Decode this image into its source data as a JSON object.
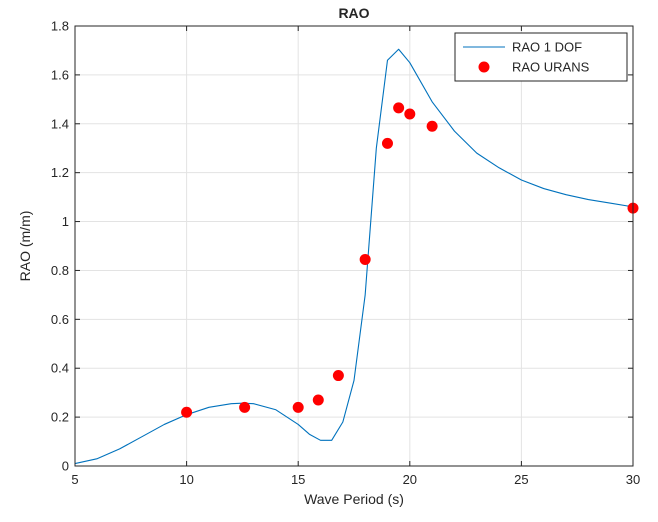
{
  "chart_data": {
    "type": "line",
    "title": "RAO",
    "xlabel": "Wave Period (s)",
    "ylabel": "RAO (m/m)",
    "xlim": [
      5,
      30
    ],
    "ylim": [
      0,
      1.8
    ],
    "xticks": [
      "5",
      "10",
      "15",
      "20",
      "25",
      "30"
    ],
    "yticks": [
      "0",
      "0.2",
      "0.4",
      "0.6",
      "0.8",
      "1",
      "1.2",
      "1.4",
      "1.6",
      "1.8"
    ],
    "grid": true,
    "legend_position": "top-right",
    "series": [
      {
        "name": "RAO 1 DOF",
        "kind": "line",
        "color": "#0072BD",
        "points": [
          [
            5,
            0.01
          ],
          [
            6,
            0.03
          ],
          [
            7,
            0.07
          ],
          [
            8,
            0.12
          ],
          [
            9,
            0.17
          ],
          [
            10,
            0.21
          ],
          [
            11,
            0.24
          ],
          [
            12,
            0.255
          ],
          [
            12.5,
            0.257
          ],
          [
            13,
            0.255
          ],
          [
            14,
            0.23
          ],
          [
            15,
            0.17
          ],
          [
            15.5,
            0.13
          ],
          [
            16,
            0.105
          ],
          [
            16.5,
            0.105
          ],
          [
            17,
            0.18
          ],
          [
            17.5,
            0.35
          ],
          [
            18,
            0.7
          ],
          [
            18.5,
            1.3
          ],
          [
            19,
            1.66
          ],
          [
            19.5,
            1.705
          ],
          [
            20,
            1.65
          ],
          [
            21,
            1.49
          ],
          [
            22,
            1.37
          ],
          [
            23,
            1.28
          ],
          [
            24,
            1.22
          ],
          [
            25,
            1.17
          ],
          [
            26,
            1.135
          ],
          [
            27,
            1.11
          ],
          [
            28,
            1.09
          ],
          [
            29,
            1.075
          ],
          [
            30,
            1.06
          ]
        ]
      },
      {
        "name": "RAO URANS",
        "kind": "scatter",
        "color": "#FF0000",
        "points": [
          [
            10,
            0.22
          ],
          [
            12.6,
            0.24
          ],
          [
            15,
            0.24
          ],
          [
            15.9,
            0.27
          ],
          [
            16.8,
            0.37
          ],
          [
            18,
            0.845
          ],
          [
            19,
            1.32
          ],
          [
            19.5,
            1.465
          ],
          [
            20,
            1.44
          ],
          [
            21,
            1.39
          ],
          [
            30,
            1.055
          ]
        ]
      }
    ]
  }
}
